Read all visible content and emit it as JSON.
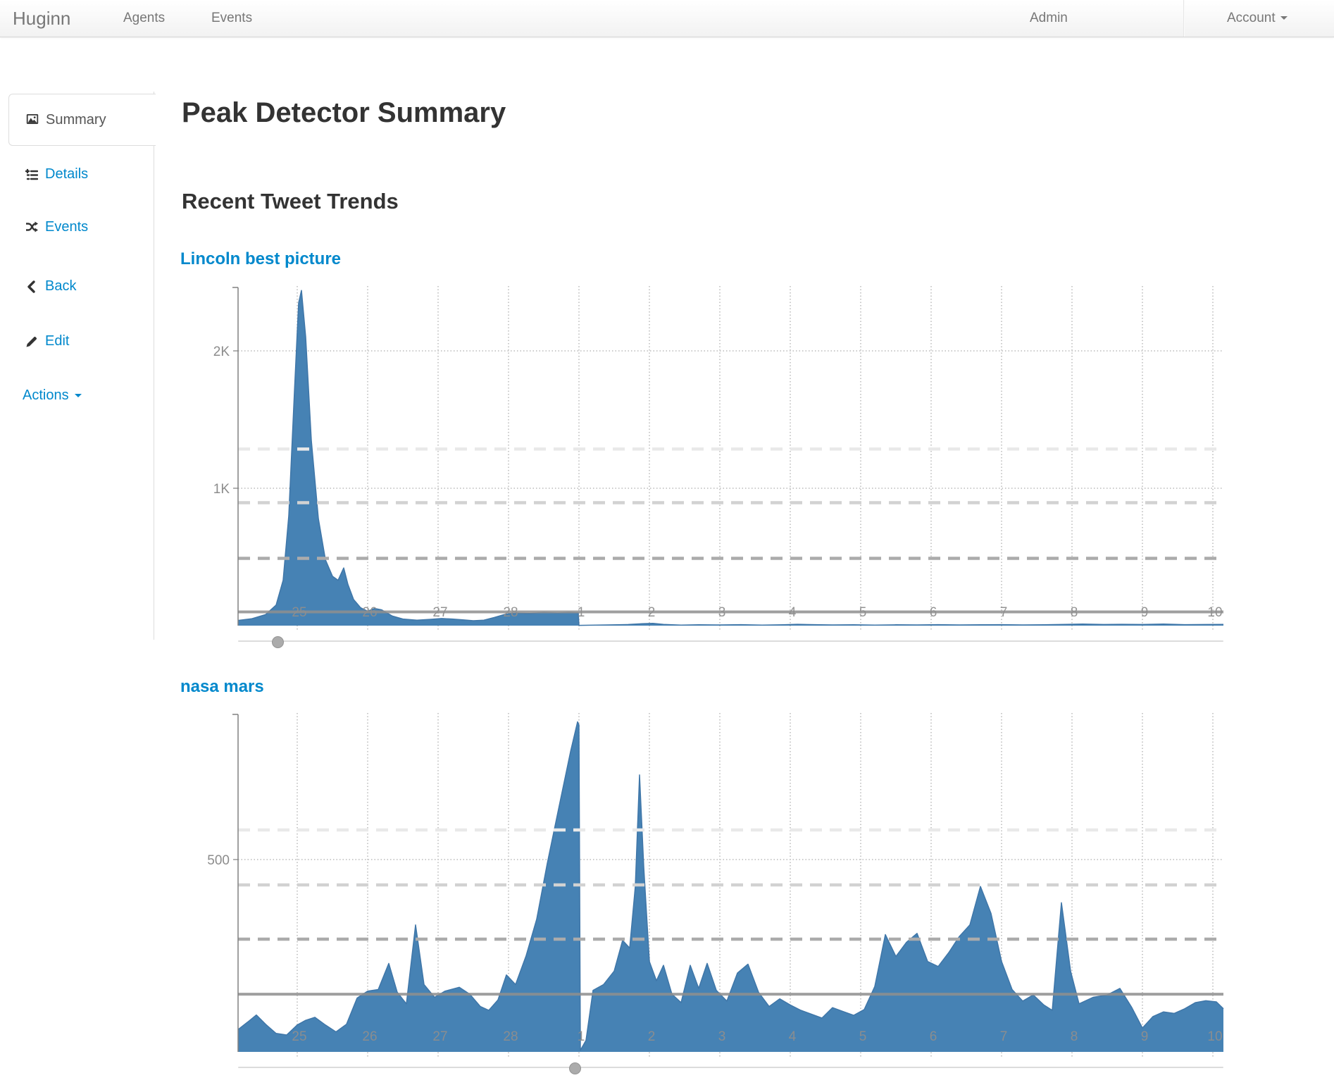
{
  "navbar": {
    "brand": "Huginn",
    "left_items": [
      {
        "label": "Agents"
      },
      {
        "label": "Events"
      }
    ],
    "right_items": [
      {
        "label": "Admin"
      },
      {
        "label": "Account"
      }
    ]
  },
  "sidebar": {
    "items": [
      {
        "label": "Summary",
        "icon": "picture-icon",
        "active": true
      },
      {
        "label": "Details",
        "icon": "details-icon"
      },
      {
        "label": "Events",
        "icon": "shuffle-icon"
      },
      {
        "label": "Back",
        "icon": "chevron-left-icon"
      },
      {
        "label": "Edit",
        "icon": "pencil-icon"
      },
      {
        "label": "Actions",
        "icon": "caret-down-icon",
        "dropdown": true
      }
    ]
  },
  "main": {
    "title": "Peak Detector Summary",
    "subtitle": "Recent Tweet Trends"
  },
  "colors": {
    "accent_link": "#0088cc",
    "series_fill": "#4682b4",
    "series_stroke": "#3f76a8",
    "grid_dotted": "#cbcbcb",
    "axis": "#808080",
    "tick_label": "#8e8e8e",
    "solid_threshold": "#8f8f8f"
  },
  "chart_data": [
    {
      "type": "area",
      "title": "Lincoln best picture",
      "color": "#4682b4",
      "x_start_day": 24.16,
      "x_end_day": 38.15,
      "tick_days": [
        25,
        26,
        27,
        28,
        29,
        30,
        31,
        32,
        33,
        34,
        35,
        36,
        37,
        38
      ],
      "x_tick_labels": [
        "25",
        "26",
        "27",
        "28",
        "1",
        "2",
        "3",
        "4",
        "5",
        "6",
        "7",
        "8",
        "9",
        "10"
      ],
      "ylim": [
        0,
        2460
      ],
      "y_ticks": [
        {
          "label": "2K",
          "value": 2000
        },
        {
          "label": "1K",
          "value": 1000
        }
      ],
      "threshold_lines": [
        {
          "value": 1285,
          "style": "dashed",
          "color": "#e9e9e9"
        },
        {
          "value": 895,
          "style": "dashed",
          "color": "#d2d2d2"
        },
        {
          "value": 490,
          "style": "dashed",
          "color": "#ababab"
        },
        {
          "value": 100,
          "style": "solid",
          "color": "#8f8f8f"
        }
      ],
      "slider_day": 24.72,
      "points": [
        [
          24.16,
          38
        ],
        [
          24.35,
          50
        ],
        [
          24.55,
          80
        ],
        [
          24.7,
          150
        ],
        [
          24.8,
          330
        ],
        [
          24.88,
          800
        ],
        [
          24.96,
          1700
        ],
        [
          25.02,
          2350
        ],
        [
          25.06,
          2440
        ],
        [
          25.12,
          2100
        ],
        [
          25.2,
          1350
        ],
        [
          25.3,
          780
        ],
        [
          25.4,
          480
        ],
        [
          25.5,
          360
        ],
        [
          25.58,
          330
        ],
        [
          25.66,
          420
        ],
        [
          25.72,
          300
        ],
        [
          25.8,
          190
        ],
        [
          25.9,
          130
        ],
        [
          26.0,
          105
        ],
        [
          26.1,
          125
        ],
        [
          26.2,
          115
        ],
        [
          26.35,
          70
        ],
        [
          26.5,
          48
        ],
        [
          26.7,
          40
        ],
        [
          26.9,
          46
        ],
        [
          27.05,
          52
        ],
        [
          27.2,
          48
        ],
        [
          27.35,
          42
        ],
        [
          27.5,
          36
        ],
        [
          27.65,
          40
        ],
        [
          27.8,
          60
        ],
        [
          27.95,
          82
        ],
        [
          28.1,
          92
        ],
        [
          28.3,
          88
        ],
        [
          28.5,
          96
        ],
        [
          28.7,
          92
        ],
        [
          28.85,
          96
        ],
        [
          28.99,
          94
        ],
        [
          29.0,
          2
        ],
        [
          29.15,
          3
        ],
        [
          29.4,
          5
        ],
        [
          29.7,
          8
        ],
        [
          29.9,
          14
        ],
        [
          30.05,
          17
        ],
        [
          30.2,
          9
        ],
        [
          30.45,
          4
        ],
        [
          30.7,
          6
        ],
        [
          31.0,
          5
        ],
        [
          31.3,
          7
        ],
        [
          31.6,
          4
        ],
        [
          31.9,
          6
        ],
        [
          32.1,
          10
        ],
        [
          32.35,
          7
        ],
        [
          32.6,
          5
        ],
        [
          32.9,
          6
        ],
        [
          33.2,
          4
        ],
        [
          33.5,
          6
        ],
        [
          33.8,
          5
        ],
        [
          34.1,
          7
        ],
        [
          34.4,
          5
        ],
        [
          34.7,
          6
        ],
        [
          35.0,
          7
        ],
        [
          35.3,
          5
        ],
        [
          35.6,
          6
        ],
        [
          35.9,
          9
        ],
        [
          36.15,
          12
        ],
        [
          36.45,
          8
        ],
        [
          36.7,
          10
        ],
        [
          37.0,
          8
        ],
        [
          37.3,
          12
        ],
        [
          37.6,
          7
        ],
        [
          37.9,
          8
        ],
        [
          38.15,
          9
        ]
      ]
    },
    {
      "type": "area",
      "title": "nasa mars",
      "color": "#4682b4",
      "x_start_day": 24.16,
      "x_end_day": 38.15,
      "tick_days": [
        25,
        26,
        27,
        28,
        29,
        30,
        31,
        32,
        33,
        34,
        35,
        36,
        37,
        38
      ],
      "x_tick_labels": [
        "25",
        "26",
        "27",
        "28",
        "1",
        "2",
        "3",
        "4",
        "5",
        "6",
        "7",
        "8",
        "9",
        "10"
      ],
      "ylim": [
        0,
        877
      ],
      "y_ticks": [
        {
          "label": "500",
          "value": 500
        }
      ],
      "threshold_lines": [
        {
          "value": 577,
          "style": "dashed",
          "color": "#e9e9e9"
        },
        {
          "value": 434,
          "style": "dashed",
          "color": "#d2d2d2"
        },
        {
          "value": 293,
          "style": "dashed",
          "color": "#ababab"
        },
        {
          "value": 150,
          "style": "solid",
          "color": "#8f8f8f"
        }
      ],
      "slider_day": 28.94,
      "points": [
        [
          24.16,
          58
        ],
        [
          24.3,
          78
        ],
        [
          24.42,
          96
        ],
        [
          24.55,
          72
        ],
        [
          24.7,
          48
        ],
        [
          24.85,
          44
        ],
        [
          25.0,
          70
        ],
        [
          25.12,
          82
        ],
        [
          25.25,
          90
        ],
        [
          25.4,
          70
        ],
        [
          25.55,
          52
        ],
        [
          25.7,
          72
        ],
        [
          25.85,
          140
        ],
        [
          26.0,
          158
        ],
        [
          26.15,
          162
        ],
        [
          26.3,
          230
        ],
        [
          26.42,
          155
        ],
        [
          26.55,
          125
        ],
        [
          26.68,
          330
        ],
        [
          26.8,
          175
        ],
        [
          26.95,
          142
        ],
        [
          27.1,
          158
        ],
        [
          27.3,
          168
        ],
        [
          27.45,
          150
        ],
        [
          27.6,
          118
        ],
        [
          27.72,
          108
        ],
        [
          27.85,
          135
        ],
        [
          27.97,
          200
        ],
        [
          28.1,
          175
        ],
        [
          28.25,
          250
        ],
        [
          28.4,
          345
        ],
        [
          28.55,
          490
        ],
        [
          28.72,
          640
        ],
        [
          28.88,
          780
        ],
        [
          28.98,
          858
        ],
        [
          29.0,
          850
        ],
        [
          29.02,
          4
        ],
        [
          29.1,
          30
        ],
        [
          29.2,
          160
        ],
        [
          29.35,
          175
        ],
        [
          29.5,
          210
        ],
        [
          29.62,
          290
        ],
        [
          29.72,
          270
        ],
        [
          29.8,
          430
        ],
        [
          29.86,
          720
        ],
        [
          29.92,
          480
        ],
        [
          30.0,
          235
        ],
        [
          30.1,
          185
        ],
        [
          30.2,
          225
        ],
        [
          30.32,
          150
        ],
        [
          30.45,
          128
        ],
        [
          30.58,
          225
        ],
        [
          30.7,
          165
        ],
        [
          30.82,
          230
        ],
        [
          30.95,
          160
        ],
        [
          31.1,
          132
        ],
        [
          31.25,
          205
        ],
        [
          31.4,
          228
        ],
        [
          31.55,
          155
        ],
        [
          31.7,
          118
        ],
        [
          31.85,
          138
        ],
        [
          32.0,
          122
        ],
        [
          32.15,
          108
        ],
        [
          32.3,
          98
        ],
        [
          32.45,
          88
        ],
        [
          32.6,
          115
        ],
        [
          32.75,
          105
        ],
        [
          32.9,
          95
        ],
        [
          33.05,
          110
        ],
        [
          33.2,
          170
        ],
        [
          33.35,
          305
        ],
        [
          33.5,
          248
        ],
        [
          33.65,
          285
        ],
        [
          33.8,
          308
        ],
        [
          33.95,
          235
        ],
        [
          34.1,
          222
        ],
        [
          34.25,
          258
        ],
        [
          34.4,
          300
        ],
        [
          34.55,
          330
        ],
        [
          34.7,
          430
        ],
        [
          34.85,
          360
        ],
        [
          35.0,
          235
        ],
        [
          35.15,
          162
        ],
        [
          35.3,
          132
        ],
        [
          35.45,
          148
        ],
        [
          35.6,
          122
        ],
        [
          35.72,
          108
        ],
        [
          35.85,
          388
        ],
        [
          35.98,
          210
        ],
        [
          36.1,
          125
        ],
        [
          36.3,
          142
        ],
        [
          36.5,
          148
        ],
        [
          36.68,
          165
        ],
        [
          36.85,
          115
        ],
        [
          37.0,
          62
        ],
        [
          37.15,
          92
        ],
        [
          37.3,
          104
        ],
        [
          37.45,
          100
        ],
        [
          37.6,
          112
        ],
        [
          37.75,
          128
        ],
        [
          37.9,
          133
        ],
        [
          38.05,
          130
        ],
        [
          38.15,
          112
        ]
      ]
    }
  ]
}
